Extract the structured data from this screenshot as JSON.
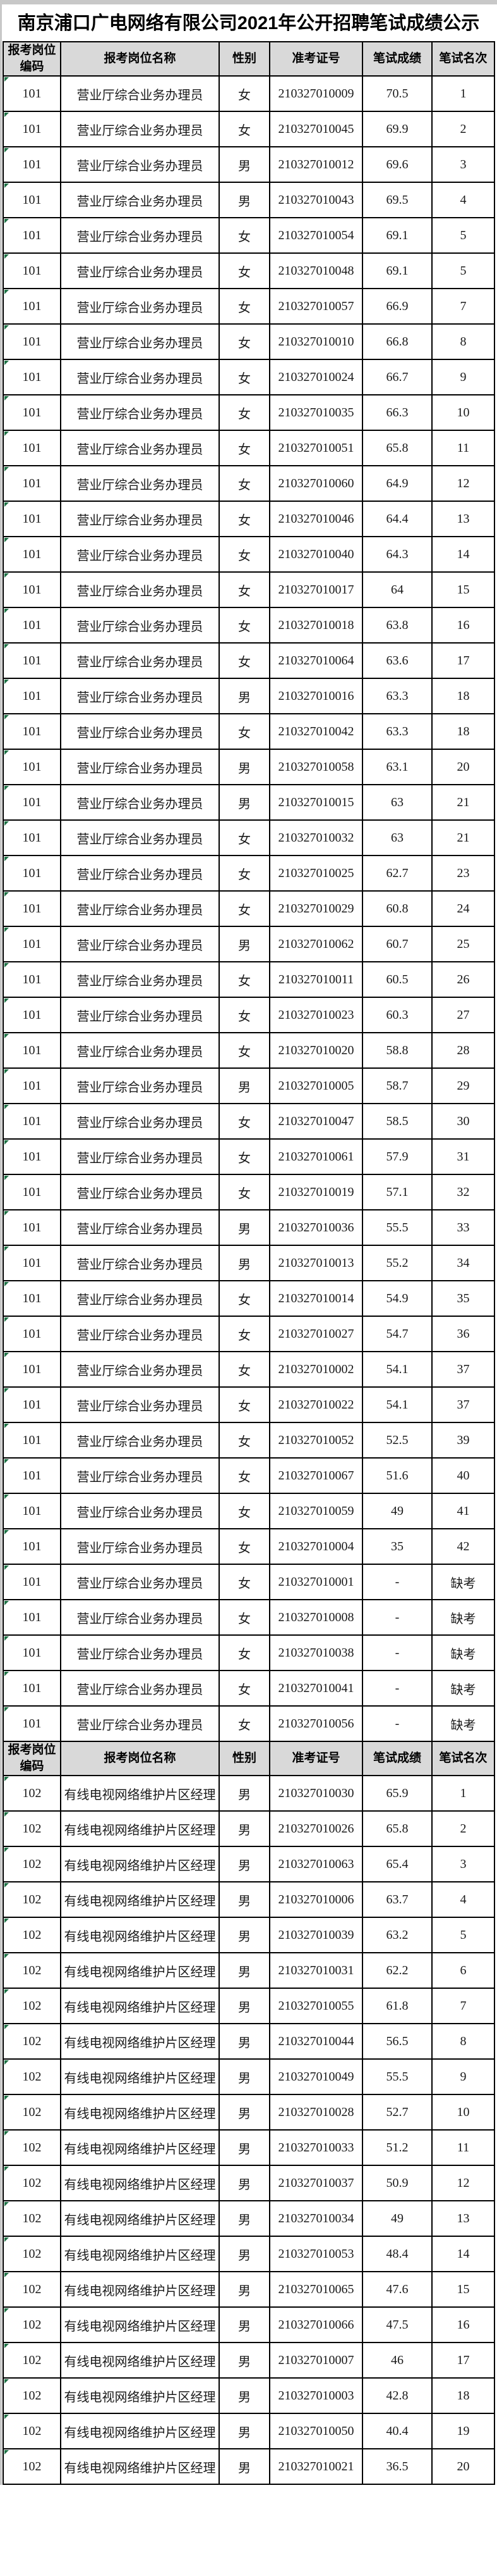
{
  "page": {
    "title": "南京浦口广电网络有限公司2021年公开招聘笔试成绩公示"
  },
  "colors": {
    "header_bg": "#d9d9d9",
    "border": "#000000",
    "flag_green": "#1f7246",
    "page_edge": "#c8c8c8"
  },
  "icons": {
    "excel_error_flag": "green-triangle-corner-marker"
  },
  "table": {
    "columns": [
      "报考岗位编码",
      "报考岗位名称",
      "性别",
      "准考证号",
      "笔试成绩",
      "笔试名次"
    ],
    "absent_label": "缺考",
    "sections": [
      {
        "position_code": "101",
        "position_name": "营业厅综合业务办理员",
        "rows": [
          [
            "101",
            "营业厅综合业务办理员",
            "女",
            "210327010009",
            "70.5",
            "1"
          ],
          [
            "101",
            "营业厅综合业务办理员",
            "女",
            "210327010045",
            "69.9",
            "2"
          ],
          [
            "101",
            "营业厅综合业务办理员",
            "男",
            "210327010012",
            "69.6",
            "3"
          ],
          [
            "101",
            "营业厅综合业务办理员",
            "男",
            "210327010043",
            "69.5",
            "4"
          ],
          [
            "101",
            "营业厅综合业务办理员",
            "女",
            "210327010054",
            "69.1",
            "5"
          ],
          [
            "101",
            "营业厅综合业务办理员",
            "女",
            "210327010048",
            "69.1",
            "5"
          ],
          [
            "101",
            "营业厅综合业务办理员",
            "女",
            "210327010057",
            "66.9",
            "7"
          ],
          [
            "101",
            "营业厅综合业务办理员",
            "女",
            "210327010010",
            "66.8",
            "8"
          ],
          [
            "101",
            "营业厅综合业务办理员",
            "女",
            "210327010024",
            "66.7",
            "9"
          ],
          [
            "101",
            "营业厅综合业务办理员",
            "女",
            "210327010035",
            "66.3",
            "10"
          ],
          [
            "101",
            "营业厅综合业务办理员",
            "女",
            "210327010051",
            "65.8",
            "11"
          ],
          [
            "101",
            "营业厅综合业务办理员",
            "女",
            "210327010060",
            "64.9",
            "12"
          ],
          [
            "101",
            "营业厅综合业务办理员",
            "女",
            "210327010046",
            "64.4",
            "13"
          ],
          [
            "101",
            "营业厅综合业务办理员",
            "女",
            "210327010040",
            "64.3",
            "14"
          ],
          [
            "101",
            "营业厅综合业务办理员",
            "女",
            "210327010017",
            "64",
            "15"
          ],
          [
            "101",
            "营业厅综合业务办理员",
            "女",
            "210327010018",
            "63.8",
            "16"
          ],
          [
            "101",
            "营业厅综合业务办理员",
            "女",
            "210327010064",
            "63.6",
            "17"
          ],
          [
            "101",
            "营业厅综合业务办理员",
            "男",
            "210327010016",
            "63.3",
            "18"
          ],
          [
            "101",
            "营业厅综合业务办理员",
            "女",
            "210327010042",
            "63.3",
            "18"
          ],
          [
            "101",
            "营业厅综合业务办理员",
            "男",
            "210327010058",
            "63.1",
            "20"
          ],
          [
            "101",
            "营业厅综合业务办理员",
            "男",
            "210327010015",
            "63",
            "21"
          ],
          [
            "101",
            "营业厅综合业务办理员",
            "女",
            "210327010032",
            "63",
            "21"
          ],
          [
            "101",
            "营业厅综合业务办理员",
            "女",
            "210327010025",
            "62.7",
            "23"
          ],
          [
            "101",
            "营业厅综合业务办理员",
            "女",
            "210327010029",
            "60.8",
            "24"
          ],
          [
            "101",
            "营业厅综合业务办理员",
            "男",
            "210327010062",
            "60.7",
            "25"
          ],
          [
            "101",
            "营业厅综合业务办理员",
            "女",
            "210327010011",
            "60.5",
            "26"
          ],
          [
            "101",
            "营业厅综合业务办理员",
            "女",
            "210327010023",
            "60.3",
            "27"
          ],
          [
            "101",
            "营业厅综合业务办理员",
            "女",
            "210327010020",
            "58.8",
            "28"
          ],
          [
            "101",
            "营业厅综合业务办理员",
            "男",
            "210327010005",
            "58.7",
            "29"
          ],
          [
            "101",
            "营业厅综合业务办理员",
            "女",
            "210327010047",
            "58.5",
            "30"
          ],
          [
            "101",
            "营业厅综合业务办理员",
            "女",
            "210327010061",
            "57.9",
            "31"
          ],
          [
            "101",
            "营业厅综合业务办理员",
            "女",
            "210327010019",
            "57.1",
            "32"
          ],
          [
            "101",
            "营业厅综合业务办理员",
            "男",
            "210327010036",
            "55.5",
            "33"
          ],
          [
            "101",
            "营业厅综合业务办理员",
            "男",
            "210327010013",
            "55.2",
            "34"
          ],
          [
            "101",
            "营业厅综合业务办理员",
            "女",
            "210327010014",
            "54.9",
            "35"
          ],
          [
            "101",
            "营业厅综合业务办理员",
            "女",
            "210327010027",
            "54.7",
            "36"
          ],
          [
            "101",
            "营业厅综合业务办理员",
            "女",
            "210327010002",
            "54.1",
            "37"
          ],
          [
            "101",
            "营业厅综合业务办理员",
            "女",
            "210327010022",
            "54.1",
            "37"
          ],
          [
            "101",
            "营业厅综合业务办理员",
            "女",
            "210327010052",
            "52.5",
            "39"
          ],
          [
            "101",
            "营业厅综合业务办理员",
            "女",
            "210327010067",
            "51.6",
            "40"
          ],
          [
            "101",
            "营业厅综合业务办理员",
            "女",
            "210327010059",
            "49",
            "41"
          ],
          [
            "101",
            "营业厅综合业务办理员",
            "女",
            "210327010004",
            "35",
            "42"
          ],
          [
            "101",
            "营业厅综合业务办理员",
            "女",
            "210327010001",
            "-",
            "缺考"
          ],
          [
            "101",
            "营业厅综合业务办理员",
            "女",
            "210327010008",
            "-",
            "缺考"
          ],
          [
            "101",
            "营业厅综合业务办理员",
            "女",
            "210327010038",
            "-",
            "缺考"
          ],
          [
            "101",
            "营业厅综合业务办理员",
            "女",
            "210327010041",
            "-",
            "缺考"
          ],
          [
            "101",
            "营业厅综合业务办理员",
            "女",
            "210327010056",
            "-",
            "缺考"
          ]
        ]
      },
      {
        "position_code": "102",
        "position_name": "有线电视网络维护片区经理",
        "rows": [
          [
            "102",
            "有线电视网络维护片区经理",
            "男",
            "210327010030",
            "65.9",
            "1"
          ],
          [
            "102",
            "有线电视网络维护片区经理",
            "男",
            "210327010026",
            "65.8",
            "2"
          ],
          [
            "102",
            "有线电视网络维护片区经理",
            "男",
            "210327010063",
            "65.4",
            "3"
          ],
          [
            "102",
            "有线电视网络维护片区经理",
            "男",
            "210327010006",
            "63.7",
            "4"
          ],
          [
            "102",
            "有线电视网络维护片区经理",
            "男",
            "210327010039",
            "63.2",
            "5"
          ],
          [
            "102",
            "有线电视网络维护片区经理",
            "男",
            "210327010031",
            "62.2",
            "6"
          ],
          [
            "102",
            "有线电视网络维护片区经理",
            "男",
            "210327010055",
            "61.8",
            "7"
          ],
          [
            "102",
            "有线电视网络维护片区经理",
            "男",
            "210327010044",
            "56.5",
            "8"
          ],
          [
            "102",
            "有线电视网络维护片区经理",
            "男",
            "210327010049",
            "55.5",
            "9"
          ],
          [
            "102",
            "有线电视网络维护片区经理",
            "男",
            "210327010028",
            "52.7",
            "10"
          ],
          [
            "102",
            "有线电视网络维护片区经理",
            "男",
            "210327010033",
            "51.2",
            "11"
          ],
          [
            "102",
            "有线电视网络维护片区经理",
            "男",
            "210327010037",
            "50.9",
            "12"
          ],
          [
            "102",
            "有线电视网络维护片区经理",
            "男",
            "210327010034",
            "49",
            "13"
          ],
          [
            "102",
            "有线电视网络维护片区经理",
            "男",
            "210327010053",
            "48.4",
            "14"
          ],
          [
            "102",
            "有线电视网络维护片区经理",
            "男",
            "210327010065",
            "47.6",
            "15"
          ],
          [
            "102",
            "有线电视网络维护片区经理",
            "男",
            "210327010066",
            "47.5",
            "16"
          ],
          [
            "102",
            "有线电视网络维护片区经理",
            "男",
            "210327010007",
            "46",
            "17"
          ],
          [
            "102",
            "有线电视网络维护片区经理",
            "男",
            "210327010003",
            "42.8",
            "18"
          ],
          [
            "102",
            "有线电视网络维护片区经理",
            "男",
            "210327010050",
            "40.4",
            "19"
          ],
          [
            "102",
            "有线电视网络维护片区经理",
            "男",
            "210327010021",
            "36.5",
            "20"
          ]
        ]
      }
    ]
  }
}
